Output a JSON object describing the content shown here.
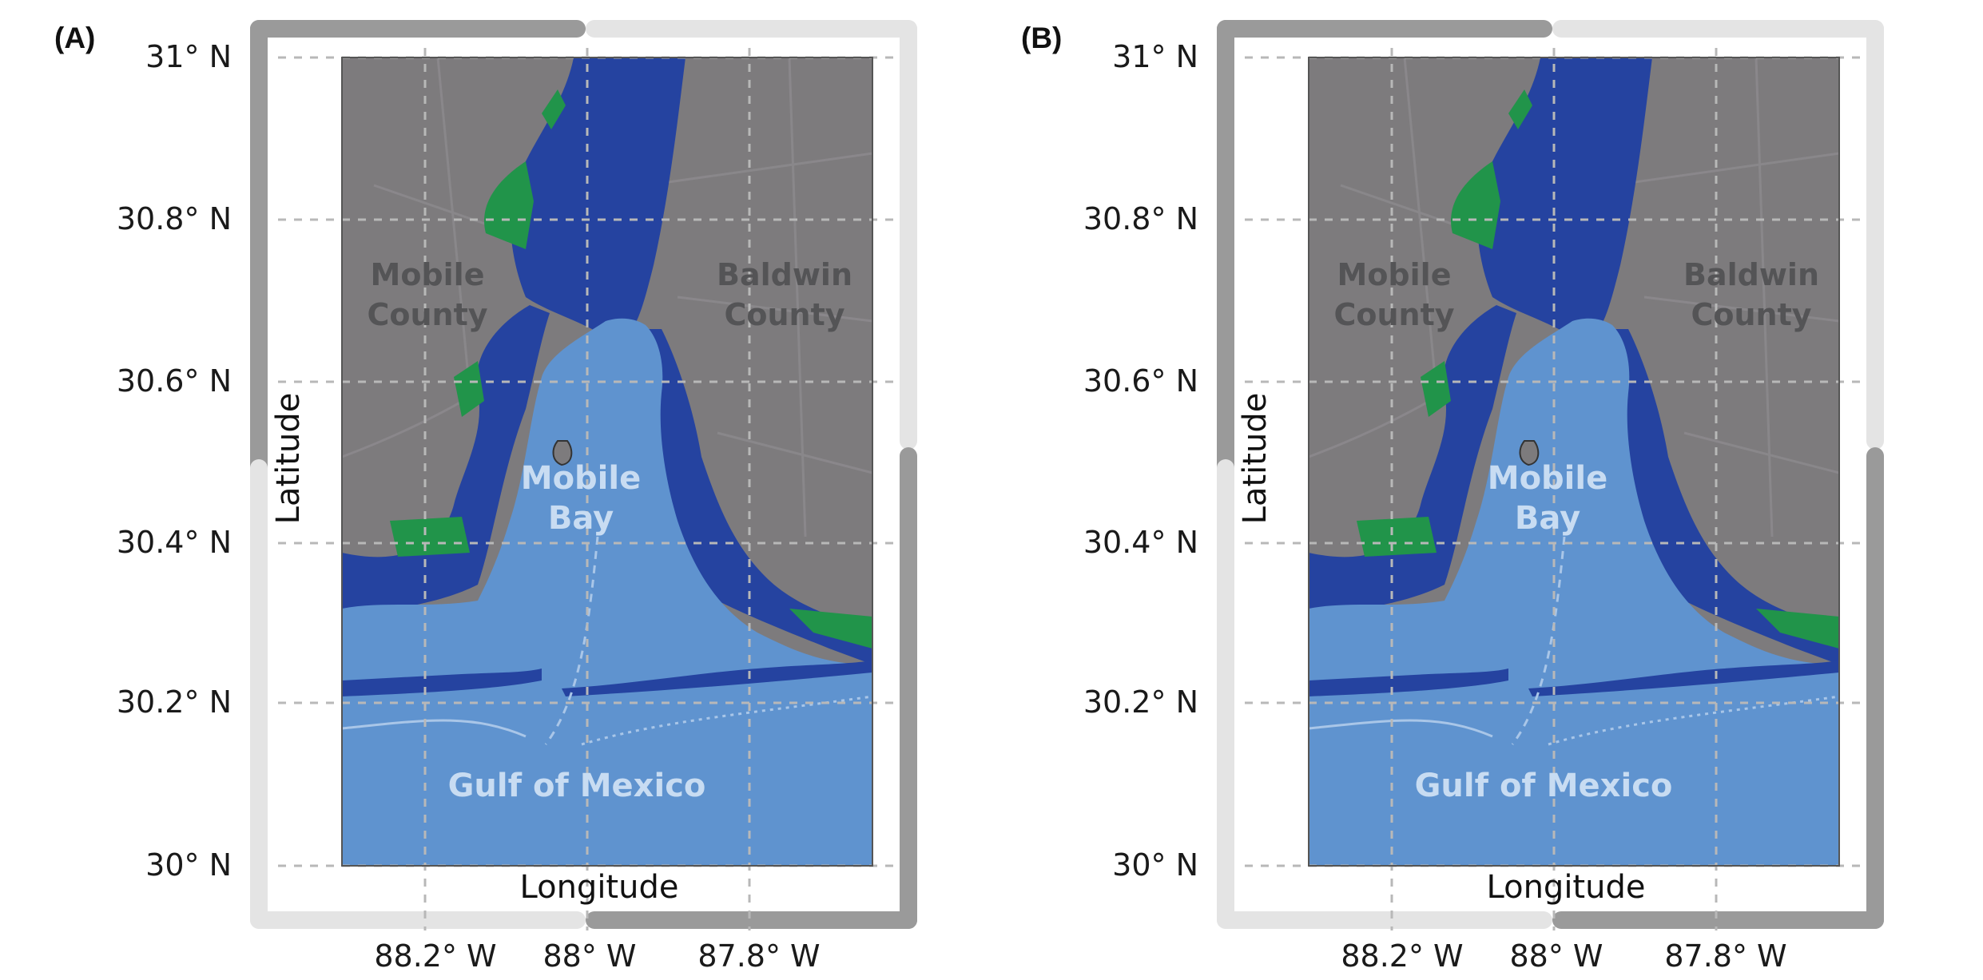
{
  "panels": [
    {
      "letter": "(A)",
      "ylabel": "Latitude",
      "xlabel": "Longitude",
      "lat_ticks": [
        "31° N",
        "30.8° N",
        "30.6° N",
        "30.4° N",
        "30.2° N",
        "30° N"
      ],
      "lon_ticks": [
        "88.2° W",
        "88° W",
        "87.8° W"
      ],
      "places": {
        "mobile_county": [
          "Mobile",
          "County"
        ],
        "baldwin_county": [
          "Baldwin",
          "County"
        ],
        "mobile_bay": [
          "Mobile",
          "Bay"
        ],
        "gulf": "Gulf of Mexico"
      }
    },
    {
      "letter": "(B)",
      "ylabel": "Latitude",
      "xlabel": "Longitude",
      "lat_ticks": [
        "31° N",
        "30.8° N",
        "30.6° N",
        "30.4° N",
        "30.2° N",
        "30° N"
      ],
      "lon_ticks": [
        "88.2° W",
        "88° W",
        "87.8° W"
      ],
      "places": {
        "mobile_county": [
          "Mobile",
          "County"
        ],
        "baldwin_county": [
          "Baldwin",
          "County"
        ],
        "mobile_bay": [
          "Mobile",
          "Bay"
        ],
        "gulf": "Gulf of Mexico"
      }
    }
  ],
  "colors": {
    "land": "#7d7b7d",
    "water": "#5f93cf",
    "inundation_blue": "#2543a0",
    "inundation_red": "#c21c3c",
    "inundation_green": "#21944a",
    "frame_light": "#e4e4e4",
    "frame_dark": "#9a9a9a"
  }
}
